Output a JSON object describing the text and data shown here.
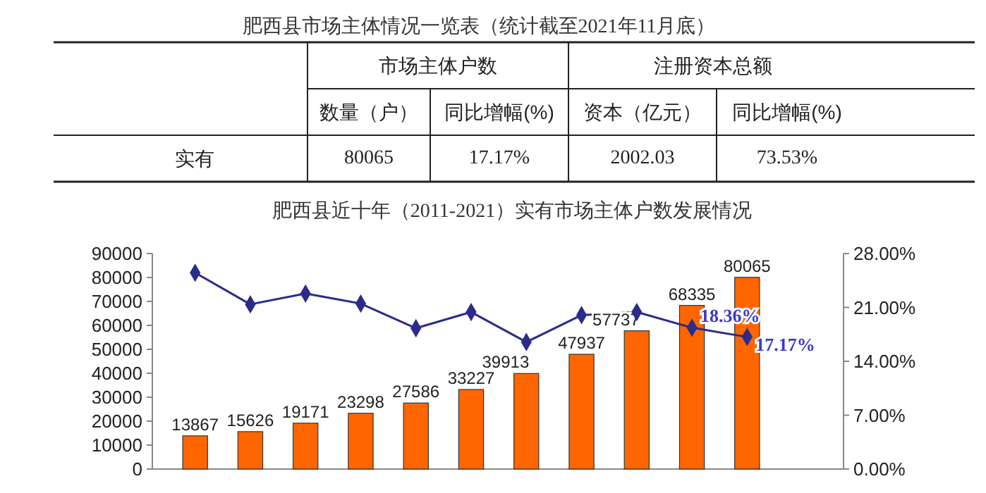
{
  "chart_data": [
    {
      "type": "other",
      "title": "肥西县市场主体情况一览表（统计截至2021年11月底）",
      "annotations": [
        "市场主体户数",
        "注册资本总额",
        "数量（户）",
        "同比增幅(%)",
        "资本（亿元）",
        "同比增幅(%)",
        "实有",
        "80065",
        "17.17%",
        "2002.03",
        "73.53%"
      ]
    },
    {
      "type": "bar",
      "title": "肥西县近十年（2011-2021）实有市场主体户数发展情况",
      "categories": [
        null,
        null,
        null,
        null,
        null,
        null,
        null,
        null,
        null,
        null,
        null
      ],
      "series": [
        {
          "type": "bar",
          "color": "#ff6600",
          "values": [
            13867,
            15626,
            19171,
            23298,
            27586,
            33227,
            39913,
            47937,
            57737,
            68335,
            80065
          ],
          "value_labels": [
            "13867",
            "15626",
            "19171",
            "23298",
            "27586",
            "33227",
            "39913",
            "47937",
            "57737",
            "68335",
            "80065"
          ]
        },
        {
          "type": "line",
          "axis": "y2",
          "color": "#2b2b8c",
          "values": [
            25.5,
            21.4,
            22.8,
            21.5,
            18.3,
            20.4,
            16.5,
            20.0,
            20.4,
            18.36,
            17.17
          ],
          "value_labels": [
            null,
            null,
            null,
            null,
            null,
            null,
            null,
            null,
            null,
            "18.36%",
            "17.17%"
          ]
        }
      ],
      "ylim": [
        0,
        90000
      ],
      "yticks": [
        0,
        10000,
        20000,
        30000,
        40000,
        50000,
        60000,
        70000,
        80000,
        90000
      ],
      "y2lim": [
        0,
        28
      ],
      "y2ticks": [
        {
          "value": 0,
          "label": "0.00%"
        },
        {
          "value": 7,
          "label": "7.00%"
        },
        {
          "value": 14,
          "label": "14.00%"
        },
        {
          "value": 21,
          "label": "21.00%"
        },
        {
          "value": 28,
          "label": "28.00%"
        }
      ],
      "marker": "diamond",
      "line_style": "solid"
    }
  ]
}
